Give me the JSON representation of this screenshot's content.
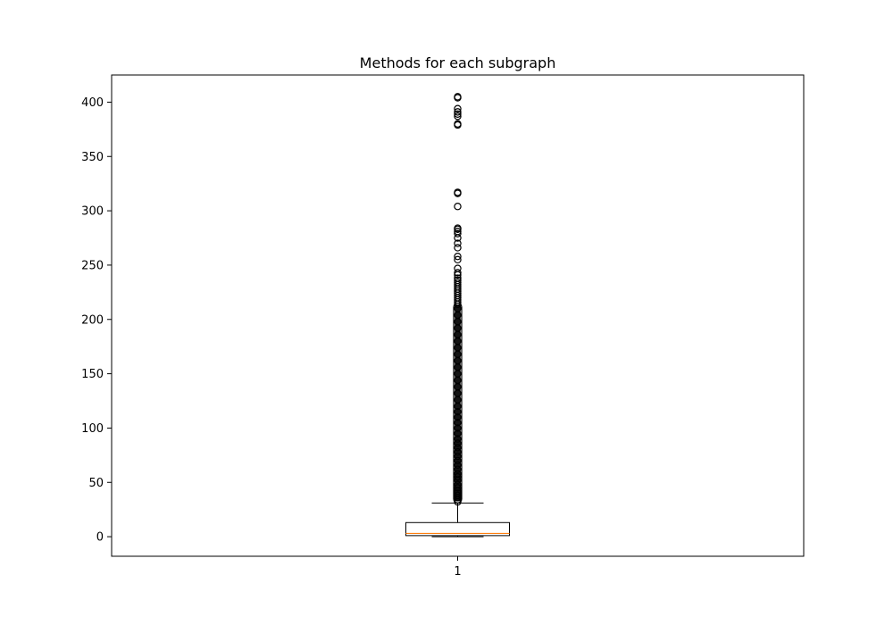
{
  "chart_data": {
    "type": "boxplot",
    "title": "Methods for each subgraph",
    "xlabel": "",
    "ylabel": "",
    "categories": [
      "1"
    ],
    "ylim": [
      -18,
      425
    ],
    "y_ticks": [
      0,
      50,
      100,
      150,
      200,
      250,
      300,
      350,
      400
    ],
    "grid": false,
    "legend": "none",
    "colors": {
      "box": "#000000",
      "median": "#ff7f0e",
      "flier": "#000000",
      "axes": "#000000",
      "background": "#ffffff"
    },
    "boxes": [
      {
        "category": "1",
        "whisker_low": 0,
        "q1": 1,
        "median": 3,
        "q3": 13,
        "whisker_high": 31,
        "outliers_dense_range": [
          31,
          215
        ],
        "outliers": [
          32,
          34,
          36,
          38,
          40,
          42,
          45,
          48,
          52,
          55,
          58,
          62,
          66,
          70,
          74,
          78,
          82,
          86,
          90,
          95,
          100,
          105,
          110,
          115,
          120,
          126,
          132,
          138,
          144,
          150,
          156,
          162,
          168,
          174,
          180,
          186,
          192,
          198,
          204,
          210,
          214,
          216,
          218,
          220,
          222,
          224,
          226,
          228,
          230,
          232,
          234,
          236,
          238,
          241,
          243,
          247,
          255,
          258,
          266,
          270,
          275,
          279,
          281,
          283,
          284,
          304,
          316,
          317,
          379,
          380,
          387,
          389,
          391,
          394,
          404,
          405
        ]
      }
    ]
  }
}
